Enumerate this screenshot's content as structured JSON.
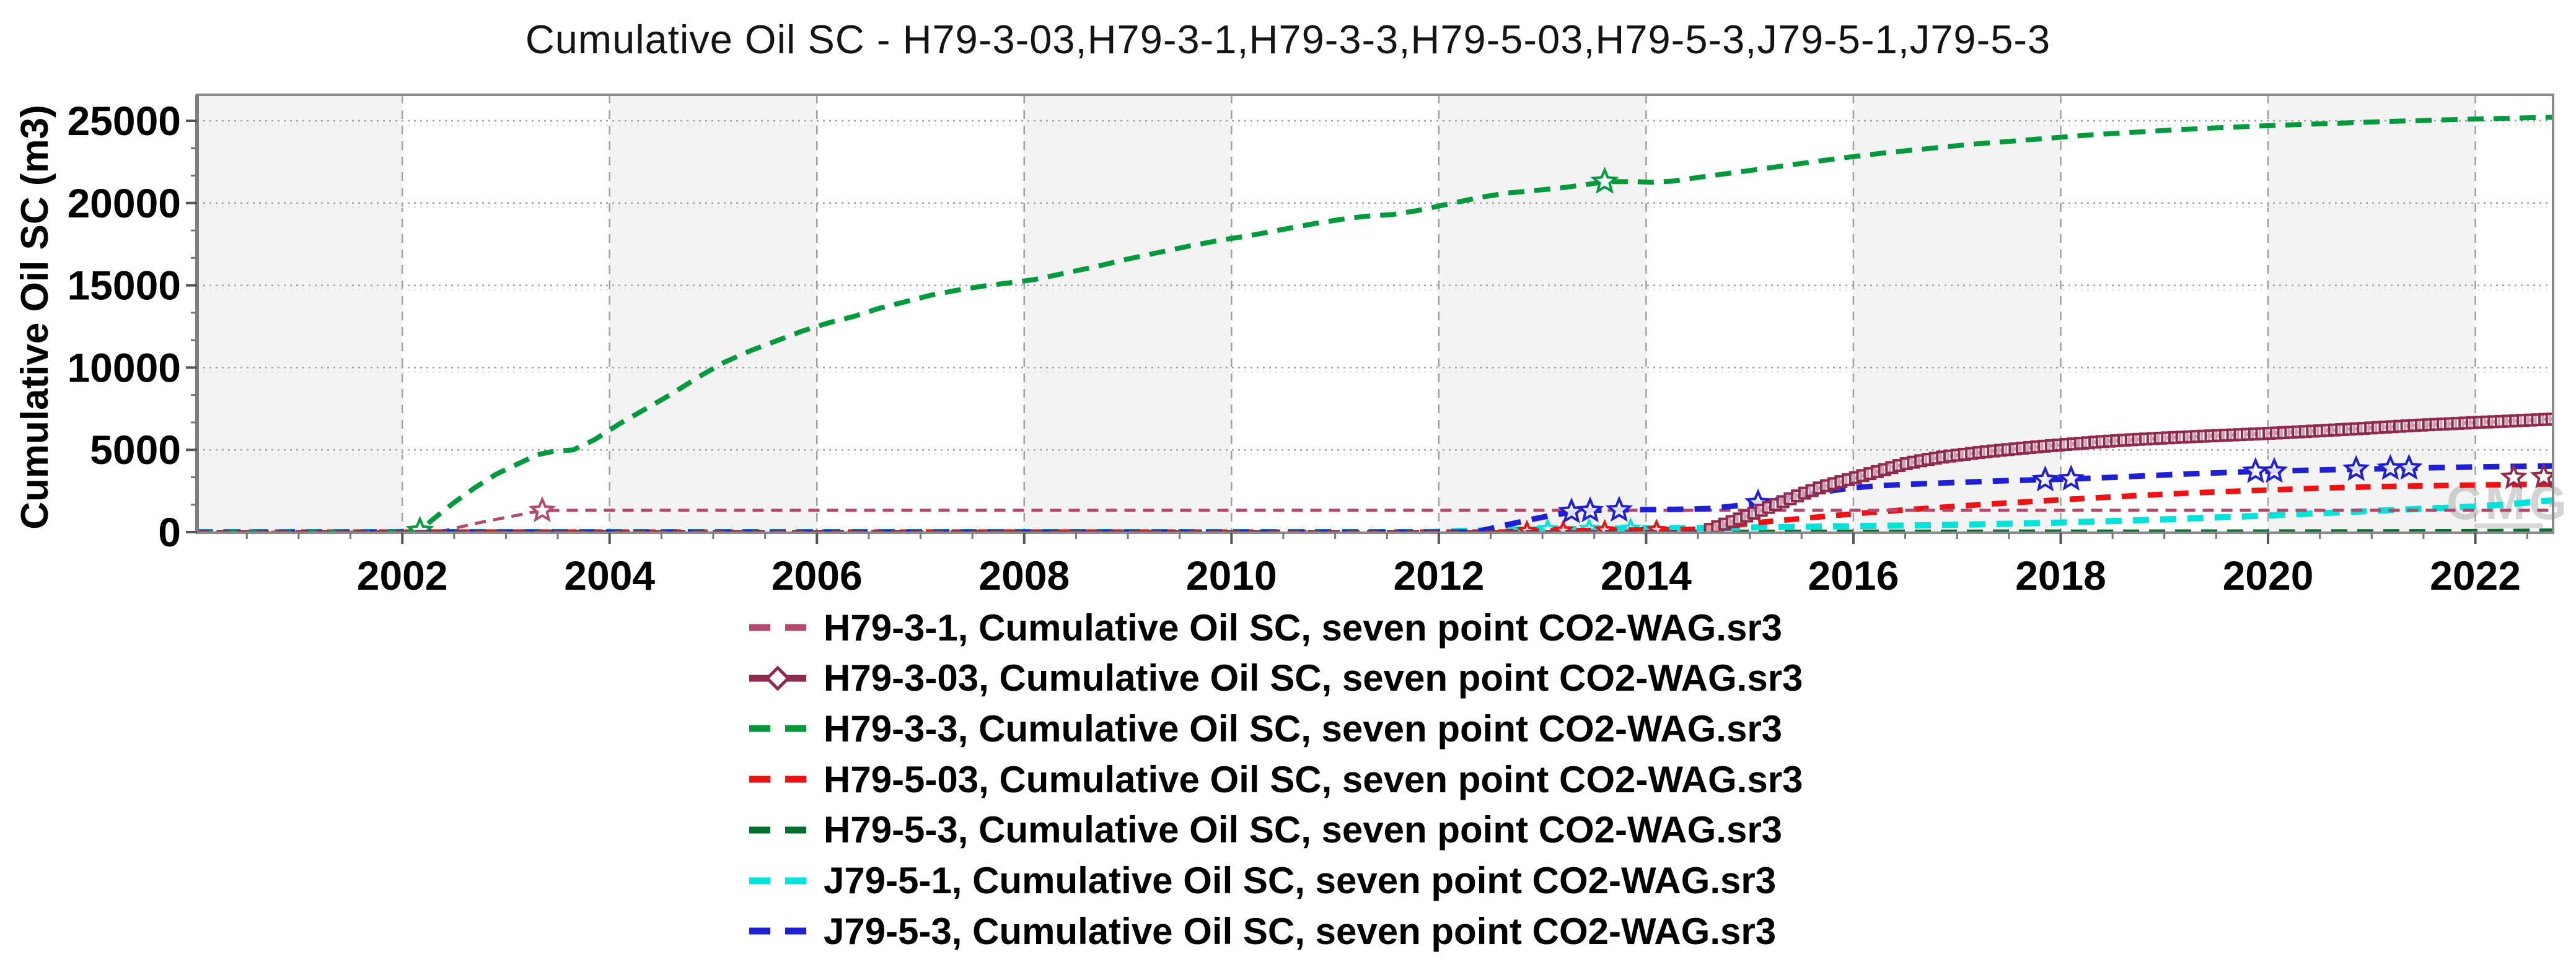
{
  "title": "Cumulative Oil SC - H79-3-03,H79-3-1,H79-3-3,H79-5-03,H79-5-3,J79-5-1,J79-5-3",
  "chart_data": {
    "type": "line",
    "title": "Cumulative Oil SC - H79-3-03,H79-3-1,H79-3-3,H79-5-03,H79-5-3,J79-5-1,J79-5-3",
    "xlabel": "",
    "ylabel": "Cumulative Oil SC (m3)",
    "x_range": [
      2000.02,
      2022.75
    ],
    "y_range": [
      0,
      26550
    ],
    "x_ticks": [
      2002,
      2004,
      2006,
      2008,
      2010,
      2012,
      2014,
      2016,
      2018,
      2020,
      2022
    ],
    "x_minor_step": 0.5,
    "y_ticks": [
      0,
      5000,
      10000,
      15000,
      20000,
      25000
    ],
    "y_minor_divisions": 3,
    "grid": true,
    "legend_position": "bottom-left",
    "watermark": "CMG",
    "style": {
      "band_fill": "#f3f3f3",
      "band_period_years": 2,
      "grid_color": "#a0a0a0",
      "grid_echo_color": "#e4e4e4",
      "frame_color": "#8a8a8a",
      "tick_color": "#555555",
      "watermark_color": "rgba(160,160,160,0.45)"
    },
    "series": [
      {
        "label": "H79-3-1, Cumulative Oil SC, seven point CO2-WAG.sr3",
        "well": "H79-3-1",
        "color": "#b34a6e",
        "width": 5,
        "dash": [
          18,
          12
        ],
        "zorder": 4,
        "marker": "star",
        "marker_size": 18,
        "marker_points": [
          [
            2003.35,
            1310
          ]
        ],
        "points": [
          [
            2000.02,
            0
          ],
          [
            2002.35,
            0
          ],
          [
            2002.55,
            300
          ],
          [
            2002.8,
            650
          ],
          [
            2003.05,
            950
          ],
          [
            2003.25,
            1200
          ],
          [
            2003.4,
            1310
          ],
          [
            2003.7,
            1330
          ],
          [
            2005,
            1330
          ],
          [
            2008,
            1330
          ],
          [
            2012,
            1330
          ],
          [
            2016,
            1330
          ],
          [
            2020,
            1330
          ],
          [
            2022.75,
            1330
          ]
        ]
      },
      {
        "label": "H79-3-03, Cumulative Oil SC, seven point CO2-WAG.sr3",
        "well": "H79-3-03",
        "color": "#8f2a4e",
        "width": 6,
        "dash": [
          20,
          12
        ],
        "zorder": 7,
        "marker": "square",
        "marker_size": 17,
        "marker_track_start": 2014.62,
        "marker_track_step": 0.07,
        "star_points": [
          [
            2022.37,
            3320
          ],
          [
            2022.66,
            3360
          ]
        ],
        "points": [
          [
            2000.02,
            0
          ],
          [
            2014.55,
            0
          ],
          [
            2014.7,
            350
          ],
          [
            2014.9,
            800
          ],
          [
            2015.1,
            1300
          ],
          [
            2015.3,
            1800
          ],
          [
            2015.5,
            2300
          ],
          [
            2015.7,
            2750
          ],
          [
            2015.9,
            3100
          ],
          [
            2016.1,
            3450
          ],
          [
            2016.3,
            3800
          ],
          [
            2016.5,
            4150
          ],
          [
            2016.7,
            4400
          ],
          [
            2016.9,
            4600
          ],
          [
            2017.1,
            4750
          ],
          [
            2017.3,
            4900
          ],
          [
            2017.55,
            5050
          ],
          [
            2017.8,
            5200
          ],
          [
            2018.1,
            5350
          ],
          [
            2018.4,
            5500
          ],
          [
            2018.7,
            5620
          ],
          [
            2019,
            5720
          ],
          [
            2019.3,
            5810
          ],
          [
            2019.6,
            5890
          ],
          [
            2019.9,
            5970
          ],
          [
            2020.2,
            6060
          ],
          [
            2020.5,
            6160
          ],
          [
            2020.8,
            6260
          ],
          [
            2021.1,
            6370
          ],
          [
            2021.4,
            6480
          ],
          [
            2021.7,
            6570
          ],
          [
            2022,
            6660
          ],
          [
            2022.3,
            6740
          ],
          [
            2022.5,
            6800
          ],
          [
            2022.75,
            6870
          ]
        ]
      },
      {
        "label": "H79-3-3, Cumulative Oil SC, seven point CO2-WAG.sr3",
        "well": "H79-3-3",
        "color": "#009a3d",
        "width": 8,
        "dash": [
          26,
          16
        ],
        "zorder": 6,
        "marker": "star",
        "marker_size": 19,
        "marker_points": [
          [
            2002.17,
            80
          ],
          [
            2013.6,
            21300
          ]
        ],
        "points": [
          [
            2000.02,
            0
          ],
          [
            2002.15,
            0
          ],
          [
            2002.3,
            800
          ],
          [
            2002.5,
            1800
          ],
          [
            2002.7,
            2700
          ],
          [
            2002.9,
            3500
          ],
          [
            2003.1,
            4100
          ],
          [
            2003.3,
            4700
          ],
          [
            2003.45,
            4900
          ],
          [
            2003.65,
            5000
          ],
          [
            2003.85,
            5600
          ],
          [
            2004.1,
            6600
          ],
          [
            2004.35,
            7500
          ],
          [
            2004.6,
            8400
          ],
          [
            2004.85,
            9400
          ],
          [
            2005.1,
            10300
          ],
          [
            2005.35,
            11000
          ],
          [
            2005.6,
            11600
          ],
          [
            2005.85,
            12200
          ],
          [
            2006.1,
            12700
          ],
          [
            2006.35,
            13100
          ],
          [
            2006.6,
            13600
          ],
          [
            2006.85,
            14000
          ],
          [
            2007.1,
            14400
          ],
          [
            2007.35,
            14700
          ],
          [
            2007.6,
            14950
          ],
          [
            2007.8,
            15100
          ],
          [
            2008.1,
            15350
          ],
          [
            2008.4,
            15750
          ],
          [
            2008.7,
            16150
          ],
          [
            2009,
            16600
          ],
          [
            2009.3,
            17000
          ],
          [
            2009.6,
            17400
          ],
          [
            2009.9,
            17750
          ],
          [
            2010.2,
            18050
          ],
          [
            2010.5,
            18400
          ],
          [
            2010.8,
            18750
          ],
          [
            2011.1,
            19050
          ],
          [
            2011.3,
            19200
          ],
          [
            2011.55,
            19300
          ],
          [
            2011.8,
            19550
          ],
          [
            2012.1,
            19950
          ],
          [
            2012.4,
            20350
          ],
          [
            2012.65,
            20600
          ],
          [
            2012.9,
            20750
          ],
          [
            2013.15,
            20900
          ],
          [
            2013.4,
            21100
          ],
          [
            2013.6,
            21300
          ],
          [
            2013.9,
            21300
          ],
          [
            2014.05,
            21260
          ],
          [
            2014.25,
            21330
          ],
          [
            2014.55,
            21600
          ],
          [
            2014.85,
            21850
          ],
          [
            2015.2,
            22150
          ],
          [
            2015.55,
            22450
          ],
          [
            2015.9,
            22750
          ],
          [
            2016.3,
            23050
          ],
          [
            2016.7,
            23300
          ],
          [
            2017.1,
            23550
          ],
          [
            2017.5,
            23750
          ],
          [
            2017.9,
            23950
          ],
          [
            2018.3,
            24150
          ],
          [
            2018.7,
            24300
          ],
          [
            2019.1,
            24450
          ],
          [
            2019.5,
            24570
          ],
          [
            2019.9,
            24680
          ],
          [
            2020.3,
            24770
          ],
          [
            2020.7,
            24860
          ],
          [
            2021.1,
            24950
          ],
          [
            2021.5,
            25020
          ],
          [
            2021.9,
            25090
          ],
          [
            2022.3,
            25150
          ],
          [
            2022.75,
            25220
          ]
        ]
      },
      {
        "label": "H79-5-03, Cumulative Oil SC, seven point CO2-WAG.sr3",
        "well": "H79-5-03",
        "color": "#ee1212",
        "width": 9,
        "dash": [
          24,
          18
        ],
        "zorder": 3,
        "marker": "star",
        "marker_size": 13,
        "marker_points": [
          [
            2012.85,
            80
          ],
          [
            2013.2,
            100
          ],
          [
            2013.6,
            120
          ],
          [
            2014.1,
            140
          ]
        ],
        "points": [
          [
            2000.02,
            0
          ],
          [
            2012.6,
            0
          ],
          [
            2012.9,
            60
          ],
          [
            2013.3,
            95
          ],
          [
            2013.7,
            115
          ],
          [
            2014.1,
            135
          ],
          [
            2014.45,
            160
          ],
          [
            2014.65,
            280
          ],
          [
            2014.9,
            450
          ],
          [
            2015.15,
            620
          ],
          [
            2015.45,
            800
          ],
          [
            2015.75,
            970
          ],
          [
            2016.1,
            1160
          ],
          [
            2016.5,
            1350
          ],
          [
            2016.9,
            1530
          ],
          [
            2017.3,
            1700
          ],
          [
            2017.7,
            1850
          ],
          [
            2018.1,
            2000
          ],
          [
            2018.5,
            2140
          ],
          [
            2018.9,
            2270
          ],
          [
            2019.3,
            2390
          ],
          [
            2019.7,
            2490
          ],
          [
            2020.1,
            2580
          ],
          [
            2020.5,
            2670
          ],
          [
            2020.9,
            2740
          ],
          [
            2021.3,
            2790
          ],
          [
            2021.7,
            2830
          ],
          [
            2022.1,
            2870
          ],
          [
            2022.75,
            2920
          ]
        ]
      },
      {
        "label": "H79-5-3, Cumulative Oil SC, seven point CO2-WAG.sr3",
        "well": "H79-5-3",
        "color": "#00702c",
        "width": 8,
        "dash": [
          26,
          16
        ],
        "zorder": 1,
        "marker": "none",
        "points": [
          [
            2000.02,
            0
          ],
          [
            2010,
            0
          ],
          [
            2015,
            0
          ],
          [
            2020,
            15
          ],
          [
            2022,
            40
          ],
          [
            2022.75,
            70
          ]
        ]
      },
      {
        "label": "J79-5-1, Cumulative Oil SC, seven point CO2-WAG.sr3",
        "well": "J79-5-1",
        "color": "#00e2da",
        "width": 10,
        "dash": [
          26,
          18
        ],
        "zorder": 2,
        "marker": "star",
        "marker_size": 13,
        "marker_points": [
          [
            2013.05,
            190
          ],
          [
            2013.45,
            210
          ],
          [
            2013.85,
            225
          ]
        ],
        "points": [
          [
            2000.02,
            0
          ],
          [
            2011.9,
            0
          ],
          [
            2012.3,
            90
          ],
          [
            2012.7,
            140
          ],
          [
            2013.1,
            180
          ],
          [
            2013.6,
            210
          ],
          [
            2014.1,
            230
          ],
          [
            2014.6,
            250
          ],
          [
            2015.1,
            290
          ],
          [
            2015.6,
            330
          ],
          [
            2016.1,
            370
          ],
          [
            2016.6,
            410
          ],
          [
            2017.1,
            460
          ],
          [
            2017.6,
            520
          ],
          [
            2018,
            580
          ],
          [
            2018.4,
            650
          ],
          [
            2018.8,
            730
          ],
          [
            2019.2,
            820
          ],
          [
            2019.6,
            910
          ],
          [
            2020,
            1010
          ],
          [
            2020.4,
            1120
          ],
          [
            2020.8,
            1230
          ],
          [
            2021.2,
            1340
          ],
          [
            2021.6,
            1450
          ],
          [
            2022,
            1560
          ],
          [
            2022.3,
            1680
          ],
          [
            2022.5,
            1800
          ],
          [
            2022.75,
            1930
          ]
        ]
      },
      {
        "label": "J79-5-3, Cumulative Oil SC, seven point CO2-WAG.sr3",
        "well": "J79-5-3",
        "color": "#1f1fd4",
        "width": 9,
        "dash": [
          26,
          18
        ],
        "zorder": 5,
        "marker": "star",
        "marker_size": 18,
        "marker_points": [
          [
            2013.28,
            1240
          ],
          [
            2013.46,
            1300
          ],
          [
            2013.74,
            1340
          ],
          [
            2015.08,
            1780
          ],
          [
            2017.85,
            3180
          ],
          [
            2018.1,
            3230
          ],
          [
            2019.88,
            3690
          ],
          [
            2020.06,
            3700
          ],
          [
            2020.85,
            3820
          ],
          [
            2021.18,
            3880
          ],
          [
            2021.36,
            3890
          ]
        ],
        "points": [
          [
            2000.02,
            0
          ],
          [
            2012.35,
            0
          ],
          [
            2012.5,
            220
          ],
          [
            2012.7,
            500
          ],
          [
            2012.9,
            780
          ],
          [
            2013.1,
            1030
          ],
          [
            2013.3,
            1230
          ],
          [
            2013.5,
            1330
          ],
          [
            2013.8,
            1360
          ],
          [
            2014.1,
            1370
          ],
          [
            2014.4,
            1390
          ],
          [
            2014.6,
            1430
          ],
          [
            2014.8,
            1550
          ],
          [
            2015,
            1700
          ],
          [
            2015.25,
            1960
          ],
          [
            2015.5,
            2230
          ],
          [
            2015.75,
            2480
          ],
          [
            2016,
            2700
          ],
          [
            2016.25,
            2820
          ],
          [
            2016.5,
            2900
          ],
          [
            2016.8,
            2970
          ],
          [
            2017.1,
            3040
          ],
          [
            2017.45,
            3120
          ],
          [
            2017.8,
            3180
          ],
          [
            2018.15,
            3240
          ],
          [
            2018.5,
            3330
          ],
          [
            2018.85,
            3430
          ],
          [
            2019.2,
            3530
          ],
          [
            2019.55,
            3610
          ],
          [
            2019.9,
            3690
          ],
          [
            2020.25,
            3740
          ],
          [
            2020.6,
            3790
          ],
          [
            2020.95,
            3830
          ],
          [
            2021.3,
            3880
          ],
          [
            2021.65,
            3920
          ],
          [
            2022,
            3960
          ],
          [
            2022.35,
            3990
          ],
          [
            2022.75,
            4020
          ]
        ]
      }
    ]
  }
}
